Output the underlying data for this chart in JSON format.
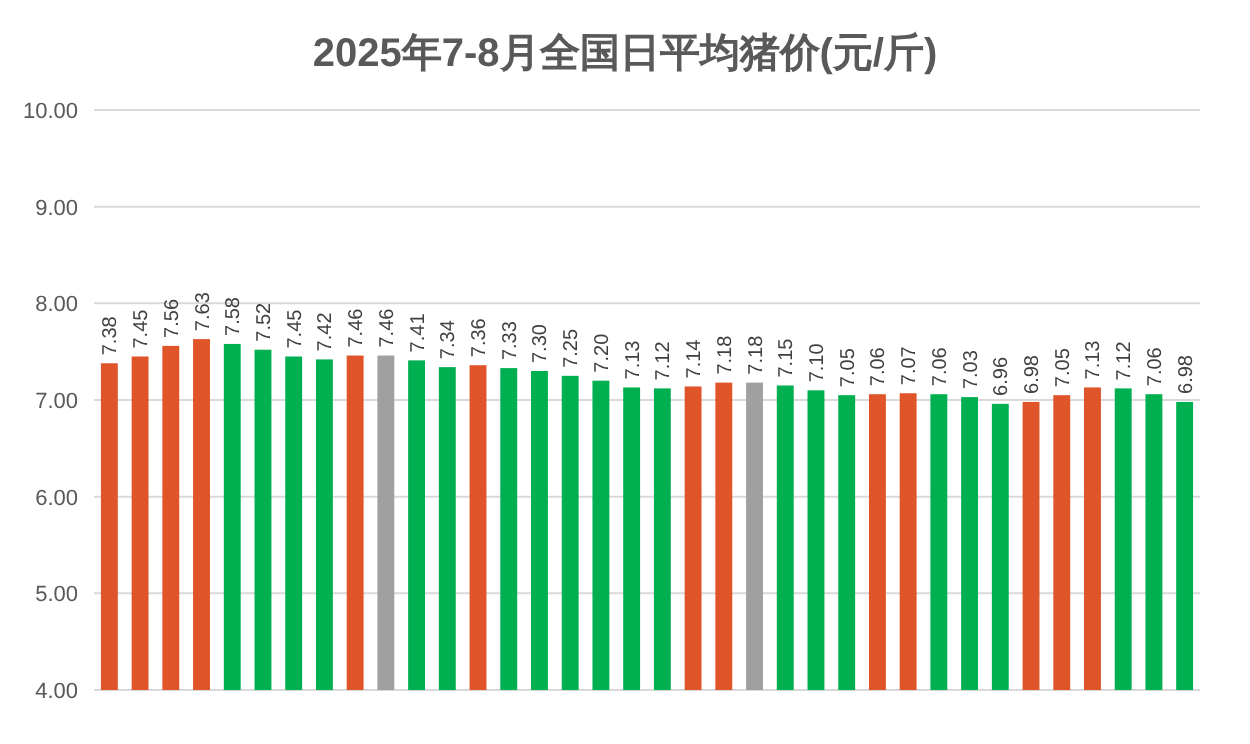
{
  "chart_data": {
    "type": "bar",
    "title": "2025年7-8月全国日平均猪价(元/斤)",
    "categories": [
      null,
      null,
      null,
      null,
      null,
      null,
      null,
      null,
      null,
      null,
      null,
      null,
      null,
      null,
      null,
      null,
      null,
      null,
      null,
      null,
      null,
      null,
      null,
      null,
      null,
      null,
      null,
      null,
      null,
      null,
      null,
      null,
      null,
      null,
      null,
      null
    ],
    "values": [
      7.38,
      7.45,
      7.56,
      7.63,
      7.58,
      7.52,
      7.45,
      7.42,
      7.46,
      7.46,
      7.41,
      7.34,
      7.36,
      7.33,
      7.3,
      7.25,
      7.2,
      7.13,
      7.12,
      7.14,
      7.18,
      7.18,
      7.15,
      7.1,
      7.05,
      7.06,
      7.07,
      7.06,
      7.03,
      6.96,
      6.98,
      7.05,
      7.13,
      7.12,
      7.06,
      6.98
    ],
    "value_labels": [
      "7.38",
      "7.45",
      "7.56",
      "7.63",
      "7.58",
      "7.52",
      "7.45",
      "7.42",
      "7.46",
      "7.46",
      "7.41",
      "7.34",
      "7.36",
      "7.33",
      "7.30",
      "7.25",
      "7.20",
      "7.13",
      "7.12",
      "7.14",
      "7.18",
      "7.18",
      "7.15",
      "7.10",
      "7.05",
      "7.06",
      "7.07",
      "7.06",
      "7.03",
      "6.96",
      "6.98",
      "7.05",
      "7.13",
      "7.12",
      "7.06",
      "6.98"
    ],
    "colors": [
      "#e0542a",
      "#e0542a",
      "#e0542a",
      "#e0542a",
      "#00b050",
      "#00b050",
      "#00b050",
      "#00b050",
      "#e0542a",
      "#a0a0a0",
      "#00b050",
      "#00b050",
      "#e0542a",
      "#00b050",
      "#00b050",
      "#00b050",
      "#00b050",
      "#00b050",
      "#00b050",
      "#e0542a",
      "#e0542a",
      "#a0a0a0",
      "#00b050",
      "#00b050",
      "#00b050",
      "#e0542a",
      "#e0542a",
      "#00b050",
      "#00b050",
      "#00b050",
      "#e0542a",
      "#e0542a",
      "#e0542a",
      "#00b050",
      "#00b050",
      "#00b050"
    ],
    "ylim": [
      4,
      10
    ],
    "yticks": [
      {
        "value": 4,
        "label": "4.00"
      },
      {
        "value": 5,
        "label": "5.00"
      },
      {
        "value": 6,
        "label": "6.00"
      },
      {
        "value": 7,
        "label": "7.00"
      },
      {
        "value": 8,
        "label": "8.00"
      },
      {
        "value": 9,
        "label": "9.00"
      },
      {
        "value": 10,
        "label": "10.00"
      }
    ],
    "grid": "y"
  }
}
